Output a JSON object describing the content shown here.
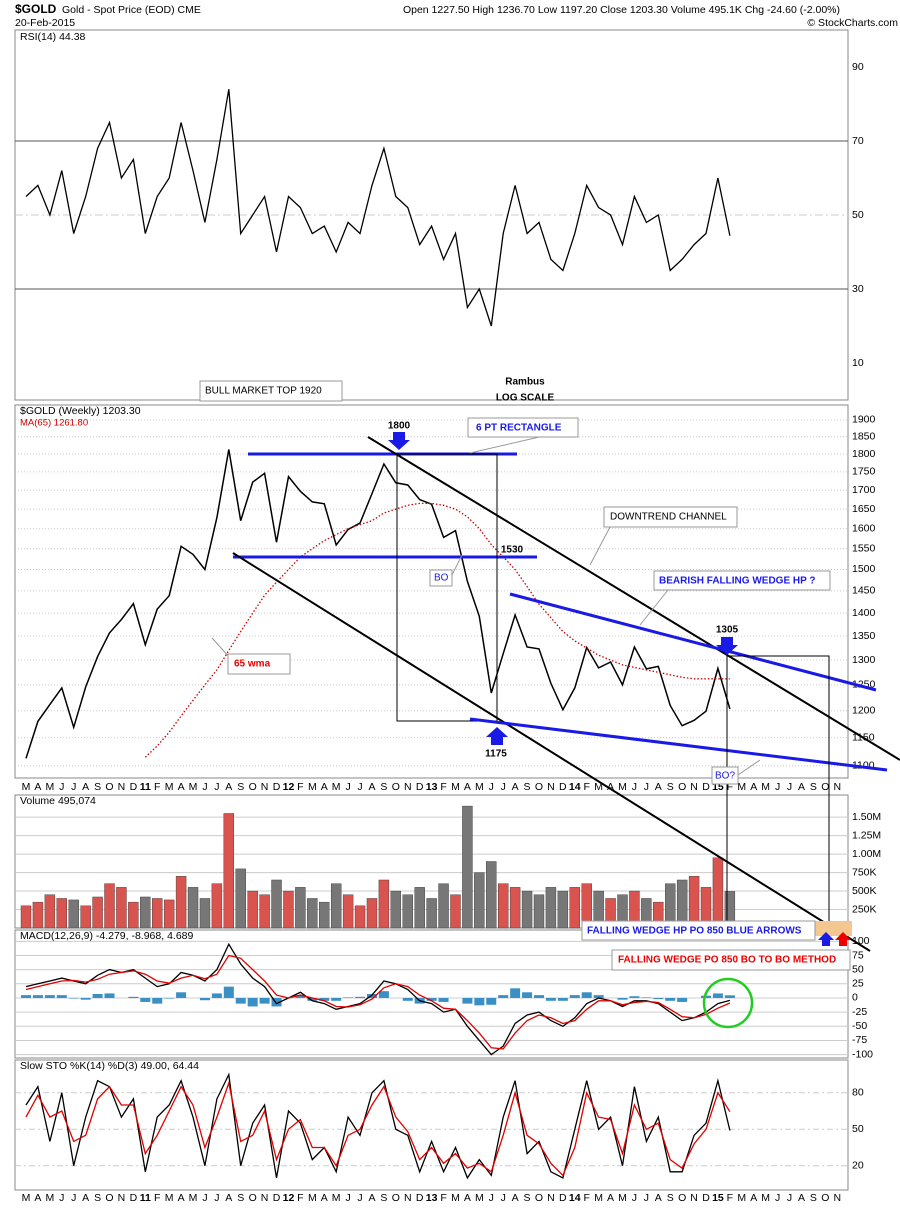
{
  "header": {
    "symbol": "$GOLD",
    "name": "Gold - Spot Price (EOD) CME",
    "date": "20-Feb-2015",
    "quote": "Open 1227.50 High 1236.70 Low 1197.20 Close 1203.30 Volume 495.1K Chg -24.60 (-2.00%)",
    "credit": "© StockCharts.com"
  },
  "annotations": [
    "BULL MARKET TOP 1920",
    "Rambus",
    "LOG SCALE",
    "1800",
    "6 PT RECTANGLE",
    "DOWNTREND CHANNEL",
    "1530",
    "BO",
    "BEARISH FALLING WEDGE HP ?",
    "1305",
    "65 wma",
    "1175",
    "BO?",
    "FALLING WEDGE HP PO 850 BLUE ARROWS",
    "FALLING WEDGE PO 850 BO TO BO METHOD"
  ],
  "chart_data": [
    {
      "type": "line",
      "legend": "RSI(14) 44.38",
      "ylim": [
        0,
        100
      ],
      "yticks": [
        10,
        30,
        50,
        70,
        90
      ],
      "series": [
        {
          "name": "RSI",
          "color": "#000000",
          "values": [
            55,
            58,
            50,
            62,
            45,
            55,
            68,
            75,
            60,
            65,
            45,
            55,
            60,
            75,
            62,
            48,
            65,
            84,
            45,
            50,
            55,
            40,
            55,
            52,
            45,
            47,
            40,
            48,
            45,
            58,
            68,
            55,
            52,
            42,
            47,
            38,
            45,
            25,
            30,
            20,
            45,
            58,
            45,
            48,
            38,
            35,
            45,
            58,
            52,
            50,
            42,
            55,
            48,
            50,
            35,
            38,
            42,
            45,
            60,
            44.38,
            null,
            null,
            null,
            null,
            null,
            null,
            null,
            null,
            null
          ]
        }
      ]
    },
    {
      "type": "line",
      "legend": "$GOLD (Weekly) 1203.30",
      "log_scale": true,
      "ylim": [
        1079,
        1945
      ],
      "yticks": [
        1100,
        1150,
        1200,
        1250,
        1300,
        1350,
        1400,
        1450,
        1500,
        1550,
        1600,
        1650,
        1700,
        1750,
        1800,
        1850,
        1900
      ],
      "categories": [
        "M",
        "A",
        "M",
        "J",
        "J",
        "A",
        "S",
        "O",
        "N",
        "D",
        "11",
        "F",
        "M",
        "A",
        "M",
        "J",
        "J",
        "A",
        "S",
        "O",
        "N",
        "D",
        "12",
        "F",
        "M",
        "A",
        "M",
        "J",
        "J",
        "A",
        "S",
        "O",
        "N",
        "D",
        "13",
        "F",
        "M",
        "A",
        "M",
        "J",
        "J",
        "A",
        "S",
        "O",
        "N",
        "D",
        "14",
        "F",
        "M",
        "A",
        "M",
        "J",
        "J",
        "A",
        "S",
        "O",
        "N",
        "D",
        "15",
        "F",
        "M",
        "A",
        "M",
        "J",
        "J",
        "A",
        "S",
        "O",
        "N"
      ],
      "series": [
        {
          "name": "$GOLD",
          "color": "#000000",
          "values": [
            1113,
            1180,
            1212,
            1244,
            1169,
            1246,
            1307,
            1357,
            1386,
            1421,
            1332,
            1409,
            1439,
            1556,
            1536,
            1500,
            1628,
            1813,
            1620,
            1722,
            1746,
            1566,
            1737,
            1697,
            1669,
            1664,
            1559,
            1598,
            1614,
            1691,
            1772,
            1720,
            1714,
            1675,
            1663,
            1578,
            1595,
            1472,
            1393,
            1234,
            1313,
            1396,
            1327,
            1323,
            1253,
            1202,
            1244,
            1326,
            1284,
            1296,
            1250,
            1327,
            1282,
            1287,
            1210,
            1172,
            1182,
            1199,
            1283,
            1203.3,
            null,
            null,
            null,
            null,
            null,
            null,
            null,
            null,
            null
          ]
        },
        {
          "name": "MA(65) 1261.80",
          "color": "#cc0000",
          "values": [
            null,
            null,
            null,
            null,
            null,
            null,
            null,
            null,
            null,
            null,
            1115,
            1135,
            1160,
            1190,
            1220,
            1250,
            1280,
            1320,
            1360,
            1400,
            1440,
            1470,
            1500,
            1530,
            1550,
            1570,
            1585,
            1600,
            1610,
            1620,
            1640,
            1650,
            1660,
            1665,
            1665,
            1660,
            1650,
            1630,
            1600,
            1560,
            1530,
            1500,
            1460,
            1420,
            1390,
            1360,
            1340,
            1325,
            1310,
            1300,
            1290,
            1285,
            1280,
            1275,
            1270,
            1265,
            1262,
            1262,
            1262,
            1261.8,
            null,
            null,
            null,
            null,
            null,
            null,
            null,
            null,
            null
          ]
        }
      ]
    },
    {
      "type": "bar",
      "legend": "Volume 495,074",
      "ylim": [
        0,
        1800000
      ],
      "yticks": [
        {
          "value": 250000,
          "label": "250K"
        },
        {
          "value": 500000,
          "label": "500K"
        },
        {
          "value": 750000,
          "label": "750K"
        },
        {
          "value": 1000000,
          "label": "1.00M"
        },
        {
          "value": 1250000,
          "label": "1.25M"
        },
        {
          "value": 1500000,
          "label": "1.50M"
        }
      ],
      "up_color": "#d9534f",
      "down_color": "#777777",
      "values": [
        300000,
        350000,
        450000,
        400000,
        380000,
        300000,
        420000,
        600000,
        550000,
        350000,
        420000,
        400000,
        380000,
        700000,
        550000,
        400000,
        600000,
        1550000,
        800000,
        500000,
        450000,
        650000,
        500000,
        550000,
        400000,
        350000,
        600000,
        450000,
        300000,
        400000,
        650000,
        500000,
        450000,
        550000,
        400000,
        600000,
        450000,
        1650000,
        750000,
        900000,
        600000,
        550000,
        500000,
        450000,
        550000,
        500000,
        550000,
        600000,
        500000,
        400000,
        450000,
        500000,
        400000,
        350000,
        600000,
        650000,
        700000,
        550000,
        950000,
        495074,
        null,
        null,
        null,
        null,
        null,
        null,
        null,
        null,
        null
      ]
    },
    {
      "type": "line",
      "legend": "MACD(12,26,9) -4.279, -8.968, 4.689",
      "ylim": [
        -106,
        120
      ],
      "yticks": [
        -100,
        -75,
        -50,
        -25,
        0,
        25,
        50,
        75,
        100
      ],
      "hist_color": "#3a8fc4",
      "series": [
        {
          "name": "MACD",
          "color": "#000000",
          "values": [
            20,
            25,
            30,
            35,
            30,
            25,
            40,
            50,
            45,
            50,
            35,
            20,
            25,
            45,
            40,
            30,
            50,
            95,
            60,
            35,
            20,
            -10,
            0,
            10,
            -5,
            -10,
            -20,
            -15,
            -10,
            5,
            30,
            25,
            15,
            -5,
            -10,
            -25,
            -20,
            -50,
            -75,
            -100,
            -85,
            -45,
            -30,
            -25,
            -40,
            -50,
            -35,
            -10,
            0,
            -5,
            -15,
            -5,
            -5,
            -10,
            -25,
            -40,
            -35,
            -25,
            -10,
            -4.279,
            null,
            null,
            null,
            null,
            null,
            null,
            null,
            null,
            null
          ]
        },
        {
          "name": "Signal",
          "color": "#e00000",
          "values": [
            15,
            20,
            25,
            30,
            31,
            28,
            33,
            42,
            45,
            48,
            42,
            30,
            26,
            35,
            40,
            34,
            42,
            75,
            70,
            50,
            30,
            5,
            0,
            5,
            0,
            -5,
            -15,
            -16,
            -12,
            -2,
            18,
            25,
            20,
            5,
            -5,
            -18,
            -20,
            -40,
            -62,
            -88,
            -90,
            -62,
            -40,
            -30,
            -35,
            -45,
            -40,
            -20,
            -5,
            -5,
            -12,
            -8,
            -6,
            -8,
            -20,
            -33,
            -35,
            -29,
            -18,
            -8.968,
            null,
            null,
            null,
            null,
            null,
            null,
            null,
            null,
            null
          ]
        }
      ],
      "histogram": [
        5,
        5,
        5,
        5,
        -1,
        -3,
        7,
        8,
        0,
        2,
        -7,
        -10,
        -1,
        10,
        0,
        -4,
        8,
        20,
        -10,
        -15,
        -10,
        -15,
        0,
        5,
        -5,
        -5,
        -5,
        1,
        2,
        7,
        12,
        0,
        -5,
        -10,
        -5,
        -7,
        0,
        -10,
        -13,
        -12,
        5,
        17,
        10,
        5,
        -5,
        -5,
        5,
        10,
        5,
        0,
        -3,
        3,
        1,
        -2,
        -5,
        -7,
        0,
        4,
        8,
        4.689,
        null,
        null,
        null,
        null,
        null,
        null,
        null,
        null,
        null
      ]
    },
    {
      "type": "line",
      "legend": "Slow STO %K(14) %D(3) 49.00, 64.44",
      "ylim": [
        0,
        107
      ],
      "yticks": [
        20,
        50,
        80
      ],
      "categories": [
        "M",
        "A",
        "M",
        "J",
        "J",
        "A",
        "S",
        "O",
        "N",
        "D",
        "11",
        "F",
        "M",
        "A",
        "M",
        "J",
        "J",
        "A",
        "S",
        "O",
        "N",
        "D",
        "12",
        "F",
        "M",
        "A",
        "M",
        "J",
        "J",
        "A",
        "S",
        "O",
        "N",
        "D",
        "13",
        "F",
        "M",
        "A",
        "M",
        "J",
        "J",
        "A",
        "S",
        "O",
        "N",
        "D",
        "14",
        "F",
        "M",
        "A",
        "M",
        "J",
        "J",
        "A",
        "S",
        "O",
        "N",
        "D",
        "15",
        "F",
        "M",
        "A",
        "M",
        "J",
        "J",
        "A",
        "S",
        "O",
        "N"
      ],
      "series": [
        {
          "name": "%K",
          "color": "#000000",
          "values": [
            70,
            85,
            40,
            80,
            20,
            60,
            90,
            85,
            60,
            75,
            15,
            60,
            70,
            90,
            60,
            20,
            75,
            95,
            20,
            55,
            70,
            10,
            65,
            55,
            25,
            35,
            15,
            60,
            45,
            80,
            90,
            50,
            45,
            15,
            40,
            15,
            35,
            10,
            25,
            12,
            60,
            90,
            30,
            40,
            15,
            10,
            50,
            90,
            50,
            60,
            20,
            85,
            40,
            60,
            15,
            15,
            45,
            55,
            90,
            49,
            null,
            null,
            null,
            null,
            null,
            null,
            null,
            null,
            null
          ]
        },
        {
          "name": "%D",
          "color": "#e00000",
          "values": [
            60,
            78,
            60,
            65,
            40,
            45,
            75,
            85,
            70,
            70,
            30,
            45,
            65,
            85,
            70,
            35,
            60,
            88,
            40,
            45,
            65,
            25,
            50,
            58,
            35,
            35,
            20,
            45,
            50,
            70,
            85,
            60,
            48,
            25,
            35,
            22,
            30,
            18,
            22,
            15,
            45,
            80,
            45,
            38,
            22,
            12,
            35,
            80,
            60,
            58,
            30,
            70,
            50,
            55,
            25,
            18,
            38,
            50,
            80,
            64.44,
            null,
            null,
            null,
            null,
            null,
            null,
            null,
            null,
            null
          ]
        }
      ]
    }
  ]
}
